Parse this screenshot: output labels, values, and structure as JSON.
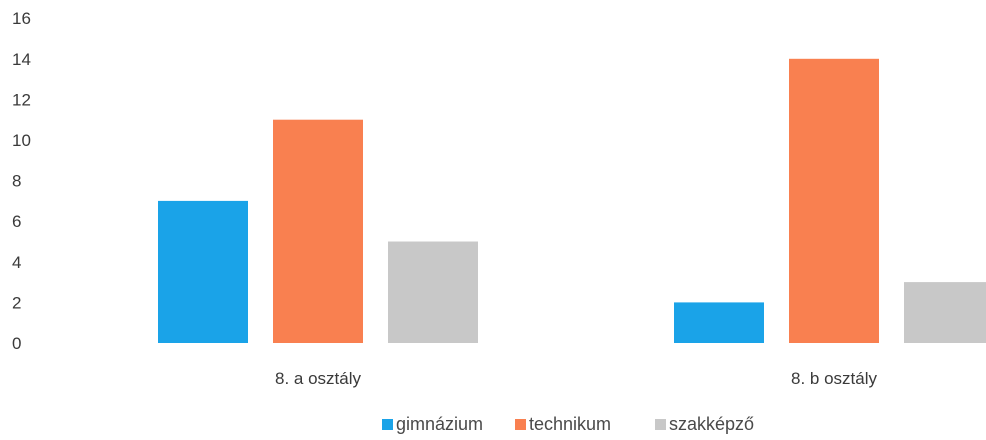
{
  "chart_data": {
    "type": "bar",
    "categories": [
      "8. a osztály",
      "8. b osztály"
    ],
    "series": [
      {
        "name": "gimnázium",
        "values": [
          7,
          2
        ],
        "color": "#1aa3e8"
      },
      {
        "name": "technikum",
        "values": [
          11,
          14
        ],
        "color": "#f98050"
      },
      {
        "name": "szakképző",
        "values": [
          5,
          3
        ],
        "color": "#c8c8c8"
      }
    ],
    "title": "",
    "xlabel": "",
    "ylabel": "",
    "ylim": [
      0,
      16
    ],
    "yticks": [
      0,
      2,
      4,
      6,
      8,
      10,
      12,
      14,
      16
    ],
    "grid": false,
    "legend_position": "bottom-center"
  }
}
